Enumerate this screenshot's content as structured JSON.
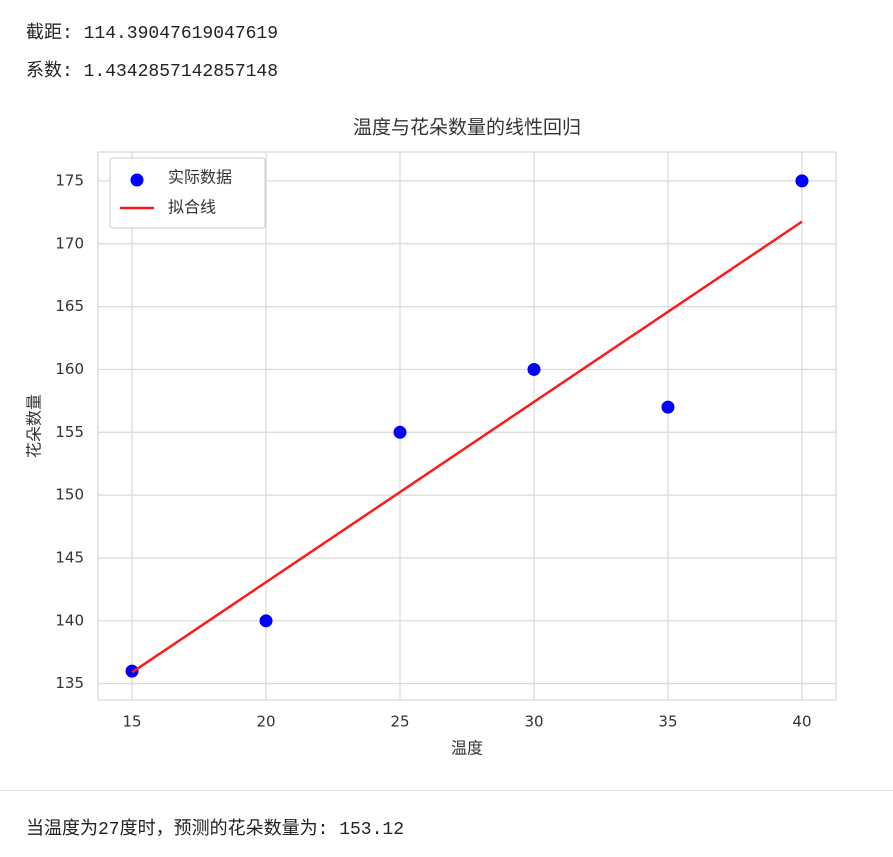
{
  "outputs": {
    "intercept": "截距: 114.39047619047619",
    "coefficient": "系数: 1.4342857142857148",
    "prediction": "当温度为27度时，预测的花朵数量为: 153.12"
  },
  "chart_data": {
    "type": "scatter",
    "title": "温度与花朵数量的线性回归",
    "x_label": "温度",
    "y_label": "花朵数量",
    "x": [
      15,
      20,
      25,
      30,
      35,
      40
    ],
    "series": [
      {
        "name": "实际数据",
        "color": "#0000ff",
        "values": [
          136,
          140,
          155,
          160,
          157,
          175
        ]
      },
      {
        "name": "拟合线",
        "type": "line",
        "color": "#ff1a1a",
        "x": [
          15,
          40
        ],
        "values": [
          135.9,
          171.76
        ]
      }
    ],
    "xlim": [
      13.73,
      41.27
    ],
    "ylim": [
      133.7,
      177.3
    ],
    "xticks": [
      15,
      20,
      25,
      30,
      35,
      40
    ],
    "yticks": [
      135,
      140,
      145,
      150,
      155,
      160,
      165,
      170,
      175
    ],
    "grid": true,
    "legend": "upper left"
  }
}
